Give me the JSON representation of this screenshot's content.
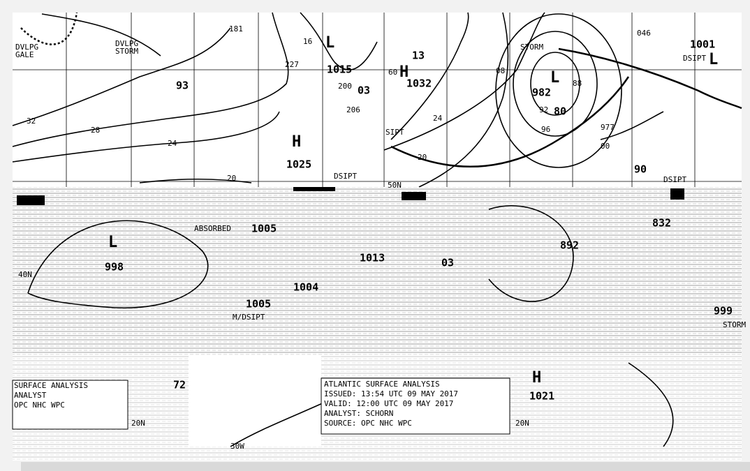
{
  "top_map": {
    "labels": [
      "DVLPG",
      "GALE",
      "DVLPG",
      "STORM",
      "93",
      "L",
      "1015",
      "03",
      "13",
      "H",
      "1032",
      "STORM",
      "L",
      "982",
      "80",
      "1001",
      "DSIPT",
      "L",
      "H",
      "1025",
      "DSIPT",
      "SIPT",
      "32",
      "28",
      "24",
      "20",
      "08",
      "24",
      "20",
      "96",
      "977",
      "00",
      "90",
      "DSIPT",
      "50N",
      "60",
      "181",
      "16",
      "227",
      "200",
      "206",
      "88",
      "92",
      "046"
    ]
  },
  "lower_map": {
    "labels": [
      "ABSORBED",
      "1005",
      "L",
      "998",
      "1013",
      "03",
      "1004",
      "1005",
      "M/DSIPT",
      "892",
      "832",
      "999",
      "STORM",
      "H",
      "1021",
      "72",
      "20N",
      "20N",
      "40N",
      "30W"
    ]
  },
  "info_box_left": {
    "lines": [
      "SURFACE ANALYSIS",
      "ANALYST",
      "OPC NHC WPC"
    ]
  },
  "info_box_right": {
    "lines": [
      "ATLANTIC SURFACE ANALYSIS",
      "ISSUED: 13:54 UTC 09 MAY 2017",
      "VALID: 12:00 UTC 09 MAY 2017",
      "ANALYST: SCHORN",
      "SOURCE: OPC NHC WPC"
    ]
  }
}
